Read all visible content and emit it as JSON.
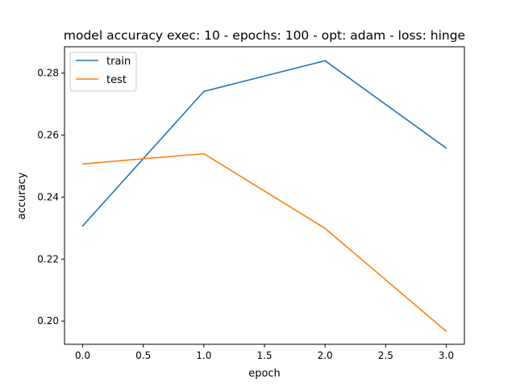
{
  "chart_data": {
    "type": "line",
    "title": "model accuracy exec: 10 - epochs: 100 - opt: adam - loss: hinge",
    "xlabel": "epoch",
    "ylabel": "accuracy",
    "x": [
      0,
      1,
      2,
      3
    ],
    "xlim": [
      -0.15,
      3.15
    ],
    "ylim": [
      0.1925,
      0.2885
    ],
    "xticks": [
      "0.0",
      "0.5",
      "1.0",
      "1.5",
      "2.0",
      "2.5",
      "3.0"
    ],
    "yticks": [
      "0.20",
      "0.22",
      "0.24",
      "0.26",
      "0.28"
    ],
    "grid": false,
    "legend_position": "upper-left",
    "series": [
      {
        "name": "train",
        "color": "#1f77b4",
        "values": [
          0.2307,
          0.2741,
          0.284,
          0.2558
        ]
      },
      {
        "name": "test",
        "color": "#ff7f0e",
        "values": [
          0.2507,
          0.254,
          0.2299,
          0.1967
        ]
      }
    ]
  }
}
